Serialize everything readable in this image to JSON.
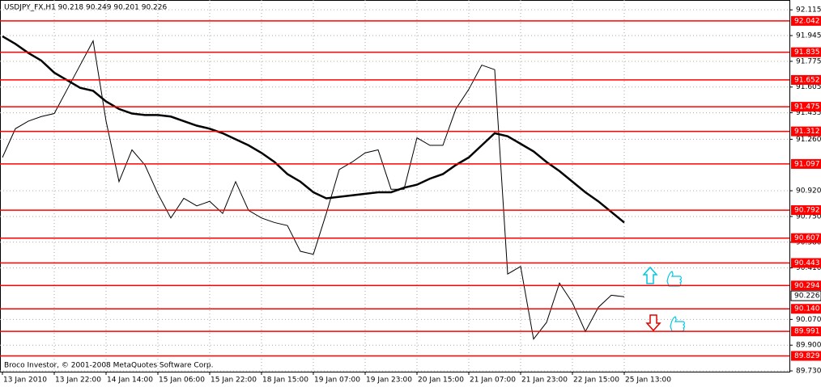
{
  "chart_data": {
    "type": "line",
    "title": "USDJPY_FX,H1  90.218 90.249 90.201 90.226",
    "footer": "Broco Investor, © 2001-2008 MetaQuotes Software Corp.",
    "categories": [
      "13 Jan 2010",
      null,
      null,
      null,
      "13 Jan 22:00",
      null,
      null,
      null,
      "14 Jan 14:00",
      null,
      null,
      null,
      "15 Jan 06:00",
      null,
      null,
      null,
      "15 Jan 22:00",
      null,
      null,
      null,
      "18 Jan 15:00",
      null,
      null,
      null,
      "19 Jan 07:00",
      null,
      null,
      null,
      "19 Jan 23:00",
      null,
      null,
      null,
      "20 Jan 15:00",
      null,
      null,
      null,
      "21 Jan 07:00",
      null,
      null,
      null,
      "21 Jan 23:00",
      null,
      null,
      null,
      "22 Jan 15:00",
      null,
      null,
      null,
      "25 Jan 13:00"
    ],
    "series": [
      {
        "color": "#000000",
        "width": 1,
        "values": [
          91.14,
          91.33,
          91.38,
          91.41,
          91.43,
          91.59,
          91.75,
          91.91,
          91.38,
          90.98,
          91.19,
          91.09,
          90.9,
          90.74,
          90.87,
          90.82,
          90.85,
          90.77,
          90.98,
          90.79,
          90.74,
          90.71,
          90.69,
          90.52,
          90.5,
          90.77,
          91.06,
          91.11,
          91.17,
          91.19,
          90.93,
          90.93,
          91.27,
          91.22,
          91.22,
          91.46,
          91.59,
          91.75,
          91.72,
          90.37,
          90.42,
          89.94,
          90.05,
          90.31,
          90.18,
          89.99,
          90.15,
          90.23,
          90.22
        ]
      },
      {
        "color": "#000000",
        "width": 2.5,
        "values": [
          91.94,
          91.89,
          91.83,
          91.78,
          91.7,
          91.65,
          91.6,
          91.58,
          91.51,
          91.46,
          91.43,
          91.42,
          91.42,
          91.41,
          91.38,
          91.35,
          91.33,
          91.3,
          91.26,
          91.22,
          91.17,
          91.11,
          91.03,
          90.98,
          90.91,
          90.87,
          90.88,
          90.89,
          90.9,
          90.91,
          90.91,
          90.94,
          90.96,
          91.0,
          91.03,
          91.09,
          91.14,
          91.22,
          91.3,
          91.28,
          91.23,
          91.18,
          91.11,
          91.05,
          90.98,
          90.91,
          90.85,
          90.78,
          90.71
        ]
      }
    ],
    "ylim": [
      89.725,
      92.18
    ],
    "yticks": [
      92.115,
      91.945,
      91.775,
      91.605,
      91.435,
      {
        "value": 91.26,
        "label": "91.260"
      },
      {
        "value": 90.92,
        "label": "90.920"
      },
      {
        "value": 90.75,
        "label": "90.750"
      },
      {
        "value": 90.58,
        "label": "90.580"
      },
      {
        "value": 90.41,
        "label": "90.410"
      },
      {
        "value": 90.07,
        "label": "90.070"
      },
      {
        "value": 89.9,
        "label": "89.900"
      },
      {
        "value": 89.73,
        "label": "89.730"
      }
    ],
    "grid": true,
    "levels": {
      "color": "#ff0000",
      "values": [
        92.042,
        91.835,
        91.652,
        91.475,
        91.312,
        91.097,
        90.792,
        90.607,
        90.443,
        90.294,
        {
          "value": 90.14,
          "label": "90.140"
        },
        89.991,
        89.829
      ]
    },
    "current_price": 90.226
  }
}
